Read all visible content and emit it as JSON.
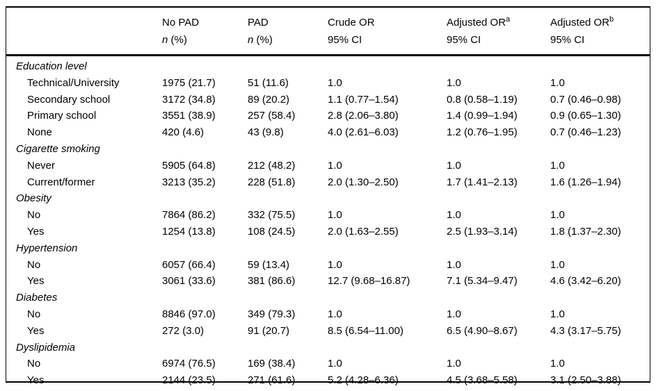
{
  "table": {
    "header": {
      "no_pad": {
        "title": "No PAD",
        "sub_n": "n",
        "sub_pct": " (%)"
      },
      "pad": {
        "title": "PAD",
        "sub_n": "n",
        "sub_pct": " (%)"
      },
      "crude_or": {
        "title": "Crude OR",
        "sub": "95% CI"
      },
      "adjusted_or_a": {
        "title": "Adjusted OR",
        "sup": "a",
        "sub": "95% CI"
      },
      "adjusted_or_b": {
        "title": "Adjusted OR",
        "sup": "b",
        "sub": "95% CI"
      }
    },
    "rows": [
      {
        "type": "section",
        "label": "Education level"
      },
      {
        "type": "item",
        "label": "Technical/University",
        "no_pad": "1975 (21.7)",
        "pad": "51 (11.6)",
        "crude_or": "1.0",
        "adj_or_a": "1.0",
        "adj_or_b": "1.0"
      },
      {
        "type": "item",
        "label": "Secondary school",
        "no_pad": "3172 (34.8)",
        "pad": "89 (20.2)",
        "crude_or": "1.1 (0.77–1.54)",
        "adj_or_a": "0.8 (0.58–1.19)",
        "adj_or_b": "0.7 (0.46–0.98)"
      },
      {
        "type": "item",
        "label": "Primary school",
        "no_pad": "3551 (38.9)",
        "pad": "257 (58.4)",
        "crude_or": "2.8 (2.06–3.80)",
        "adj_or_a": "1.4 (0.99–1.94)",
        "adj_or_b": "0.9 (0.65–1.30)"
      },
      {
        "type": "item",
        "label": "None",
        "no_pad": "420 (4.6)",
        "pad": "43 (9.8)",
        "crude_or": "4.0 (2.61–6.03)",
        "adj_or_a": "1.2 (0.76–1.95)",
        "adj_or_b": "0.7 (0.46–1.23)"
      },
      {
        "type": "section",
        "label": "Cigarette smoking"
      },
      {
        "type": "item",
        "label": "Never",
        "no_pad": "5905 (64.8)",
        "pad": "212 (48.2)",
        "crude_or": "1.0",
        "adj_or_a": "1.0",
        "adj_or_b": "1.0"
      },
      {
        "type": "item",
        "label": "Current/former",
        "no_pad": "3213 (35.2)",
        "pad": "228 (51.8)",
        "crude_or": "2.0 (1.30–2.50)",
        "adj_or_a": "1.7 (1.41–2.13)",
        "adj_or_b": "1.6 (1.26–1.94)"
      },
      {
        "type": "section",
        "label": "Obesity"
      },
      {
        "type": "item",
        "label": "No",
        "no_pad": "7864 (86.2)",
        "pad": "332 (75.5)",
        "crude_or": "1.0",
        "adj_or_a": "1.0",
        "adj_or_b": "1.0"
      },
      {
        "type": "item",
        "label": "Yes",
        "no_pad": "1254 (13.8)",
        "pad": "108 (24.5)",
        "crude_or": "2.0 (1.63–2.55)",
        "adj_or_a": "2.5 (1.93–3.14)",
        "adj_or_b": "1.8 (1.37–2.30)"
      },
      {
        "type": "section",
        "label": "Hypertension"
      },
      {
        "type": "item",
        "label": "No",
        "no_pad": "6057 (66.4)",
        "pad": "59 (13.4)",
        "crude_or": "1.0",
        "adj_or_a": "1.0",
        "adj_or_b": "1.0"
      },
      {
        "type": "item",
        "label": "Yes",
        "no_pad": "3061 (33.6)",
        "pad": "381 (86.6)",
        "crude_or": "12.7 (9.68–16.87)",
        "adj_or_a": "7.1 (5.34–9.47)",
        "adj_or_b": "4.6 (3.42–6.20)"
      },
      {
        "type": "section",
        "label": "Diabetes"
      },
      {
        "type": "item",
        "label": "No",
        "no_pad": "8846 (97.0)",
        "pad": "349 (79.3)",
        "crude_or": "1.0",
        "adj_or_a": "1.0",
        "adj_or_b": "1.0"
      },
      {
        "type": "item",
        "label": "Yes",
        "no_pad": "272 (3.0)",
        "pad": "91 (20.7)",
        "crude_or": "8.5 (6.54–11.00)",
        "adj_or_a": "6.5 (4.90–8.67)",
        "adj_or_b": "4.3 (3.17–5.75)"
      },
      {
        "type": "section",
        "label": "Dyslipidemia"
      },
      {
        "type": "item",
        "label": "No",
        "no_pad": "6974 (76.5)",
        "pad": "169 (38.4)",
        "crude_or": "1.0",
        "adj_or_a": "1.0",
        "adj_or_b": "1.0"
      },
      {
        "type": "item",
        "label": "Yes",
        "no_pad": "2144 (23.5)",
        "pad": "271 (61.6)",
        "crude_or": "5.2 (4.28–6.36)",
        "adj_or_a": "4.5 (3.68–5.58)",
        "adj_or_b": "3.1 (2.50–3.88)"
      }
    ]
  }
}
